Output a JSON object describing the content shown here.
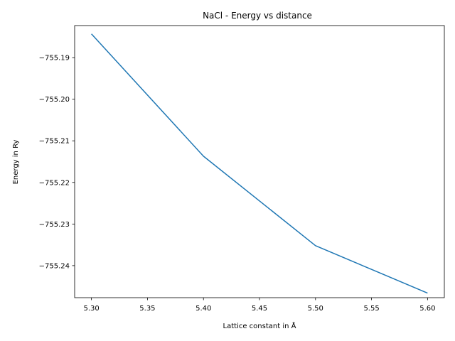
{
  "chart_data": {
    "type": "line",
    "title": "NaCl - Energy vs distance",
    "xlabel": "Lattice constant in Å",
    "ylabel": "Energy in Ry",
    "xlim": [
      5.285,
      5.615
    ],
    "ylim": [
      -755.2477,
      -755.1823
    ],
    "xticks": [
      5.3,
      5.35,
      5.4,
      5.45,
      5.5,
      5.55,
      5.6
    ],
    "xtick_labels": [
      "5.30",
      "5.35",
      "5.40",
      "5.45",
      "5.50",
      "5.55",
      "5.60"
    ],
    "yticks": [
      -755.19,
      -755.2,
      -755.21,
      -755.22,
      -755.23,
      -755.24
    ],
    "ytick_labels": [
      "−755.19",
      "−755.20",
      "−755.21",
      "−755.22",
      "−755.23",
      "−755.24"
    ],
    "grid": false,
    "series": [
      {
        "x": [
          5.3,
          5.4,
          5.5,
          5.6
        ],
        "y": [
          -755.1843,
          -755.2137,
          -755.2352,
          -755.2466
        ],
        "color": "#1f77b4"
      }
    ]
  }
}
